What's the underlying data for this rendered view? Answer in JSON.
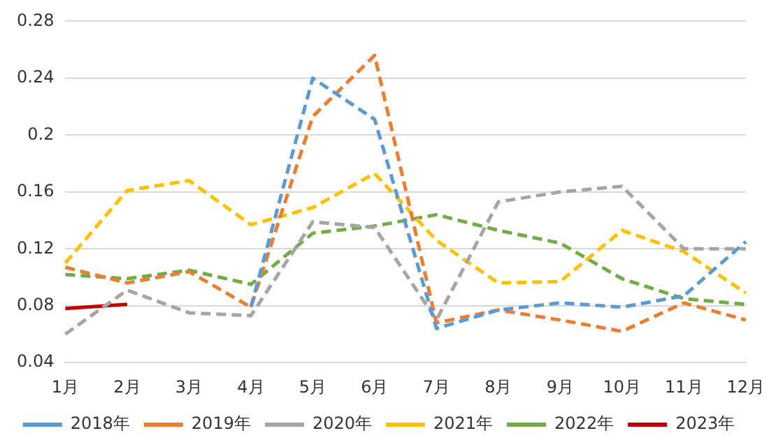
{
  "chart_data": {
    "type": "line",
    "categories": [
      "1月",
      "2月",
      "3月",
      "4月",
      "5月",
      "6月",
      "7月",
      "8月",
      "9月",
      "10月",
      "11月",
      "12月"
    ],
    "ylim": [
      0.04,
      0.28
    ],
    "yticks": [
      0.04,
      0.08,
      0.12,
      0.16,
      0.2,
      0.24,
      0.28
    ],
    "grid": "y",
    "legend": "bottom",
    "marker": "none",
    "series": [
      {
        "name": "2018年",
        "color": "#5b9bd5",
        "line_style": "dashed",
        "values": [
          null,
          null,
          null,
          0.079,
          0.24,
          0.211,
          0.064,
          0.077,
          0.082,
          0.079,
          0.087,
          0.125
        ]
      },
      {
        "name": "2019年",
        "color": "#ed7d31",
        "line_style": "dashed",
        "values": [
          0.107,
          0.096,
          0.104,
          0.079,
          0.213,
          0.256,
          0.068,
          0.077,
          0.07,
          0.062,
          0.082,
          0.07
        ]
      },
      {
        "name": "2020年",
        "color": "#a5a5a5",
        "line_style": "dashed",
        "values": [
          0.06,
          0.091,
          0.075,
          0.073,
          0.139,
          0.135,
          0.07,
          0.153,
          0.16,
          0.164,
          0.12,
          0.12
        ]
      },
      {
        "name": "2021年",
        "color": "#ffc000",
        "line_style": "dashed",
        "values": [
          0.11,
          0.161,
          0.168,
          0.137,
          0.149,
          0.173,
          0.126,
          0.096,
          0.097,
          0.133,
          0.118,
          0.089
        ]
      },
      {
        "name": "2022年",
        "color": "#70ad47",
        "line_style": "dashed",
        "values": [
          0.102,
          0.099,
          0.105,
          0.095,
          0.131,
          0.136,
          0.144,
          0.133,
          0.124,
          0.099,
          0.085,
          0.081
        ]
      },
      {
        "name": "2023年",
        "color": "#c00000",
        "line_style": "solid",
        "values": [
          0.078,
          0.081,
          null,
          null,
          null,
          null,
          null,
          null,
          null,
          null,
          null,
          null
        ]
      }
    ]
  }
}
